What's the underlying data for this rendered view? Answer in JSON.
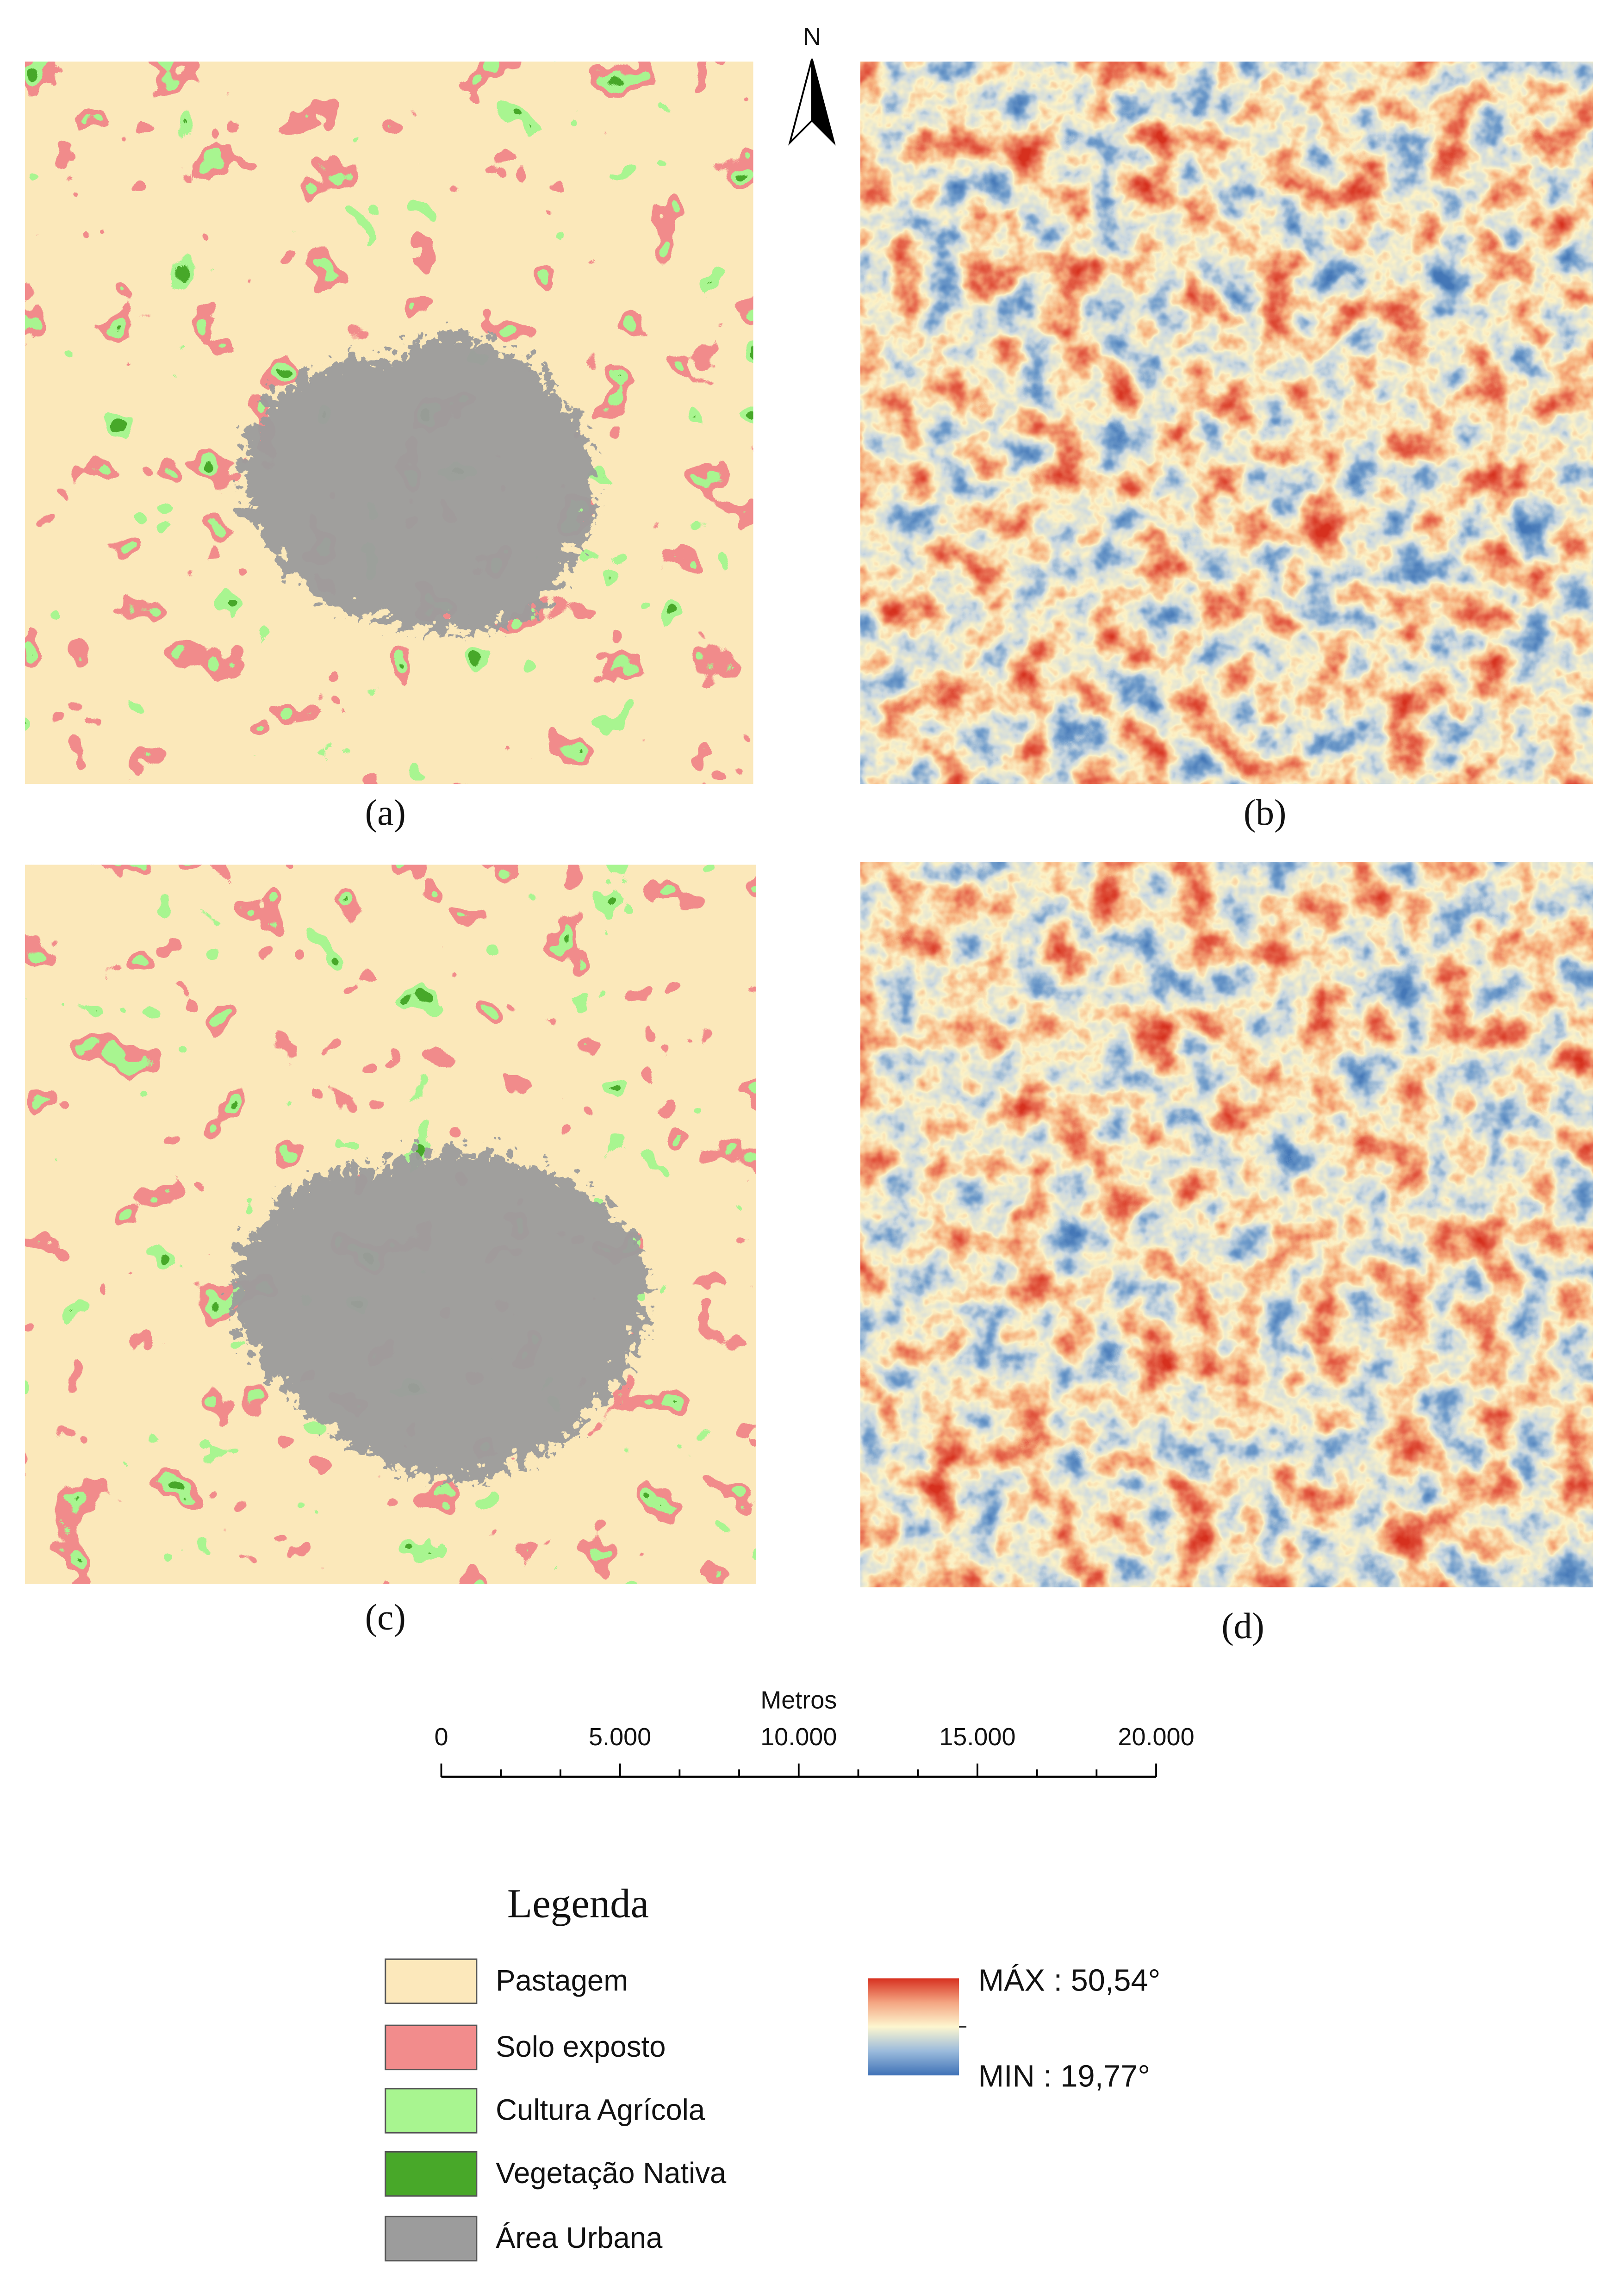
{
  "north": "N",
  "panels": [
    "(a)",
    "(b)",
    "(c)",
    "(d)"
  ],
  "scale_bar": {
    "unit": "Metros",
    "labels": [
      "0",
      "5.000",
      "10.000",
      "15.000",
      "20.000"
    ]
  },
  "legend": {
    "title": "Legenda",
    "items": [
      {
        "label": "Pastagem",
        "color": "#fce8bb"
      },
      {
        "label": "Solo exposto",
        "color": "#f28c8c"
      },
      {
        "label": "Cultura Agrícola",
        "color": "#a8f590"
      },
      {
        "label": "Vegetação Nativa",
        "color": "#48a829"
      },
      {
        "label": "Área Urbana",
        "color": "#9c9c9c"
      }
    ]
  },
  "temperature": {
    "max": "MÁX : 50,54°",
    "min": "MIN : 19,77°"
  }
}
